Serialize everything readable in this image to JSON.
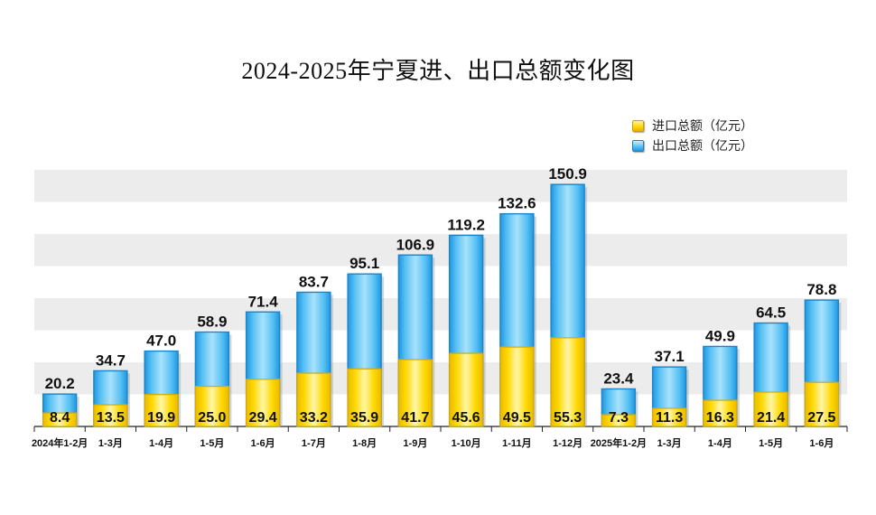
{
  "chart_data": {
    "type": "bar",
    "title": "2024-2025年宁夏进、出口总额变化图",
    "xlabel": "",
    "ylabel": "",
    "ylim": [
      0,
      160
    ],
    "grid": true,
    "legend_position": "top-right",
    "categories": [
      "2024年1-2月",
      "1-3月",
      "1-4月",
      "1-5月",
      "1-6月",
      "1-7月",
      "1-8月",
      "1-9月",
      "1-10月",
      "1-11月",
      "1-12月",
      "2025年1-2月",
      "1-3月",
      "1-4月",
      "1-5月",
      "1-6月"
    ],
    "series": [
      {
        "name": "进口总额（亿元）",
        "color": "#ffd400",
        "values": [
          8.4,
          13.5,
          19.9,
          25.0,
          29.4,
          33.2,
          35.9,
          41.7,
          45.6,
          49.5,
          55.3,
          7.3,
          11.3,
          16.3,
          21.4,
          27.5
        ]
      },
      {
        "name": "出口总额（亿元）",
        "color": "#3fb1ef",
        "values": [
          20.2,
          34.7,
          47.0,
          58.9,
          71.4,
          83.7,
          95.1,
          106.9,
          119.2,
          132.6,
          150.9,
          23.4,
          37.1,
          49.9,
          64.5,
          78.8
        ]
      }
    ],
    "import_labels": [
      "8.4",
      "13.5",
      "19.9",
      "25.0",
      "29.4",
      "33.2",
      "35.9",
      "41.7",
      "45.6",
      "49.5",
      "55.3",
      "7.3",
      "11.3",
      "16.3",
      "21.4",
      "27.5"
    ],
    "export_labels": [
      "20.2",
      "34.7",
      "47.0",
      "58.9",
      "71.4",
      "83.7",
      "95.1",
      "106.9",
      "119.2",
      "132.6",
      "150.9",
      "23.4",
      "37.1",
      "49.9",
      "64.5",
      "78.8"
    ]
  }
}
